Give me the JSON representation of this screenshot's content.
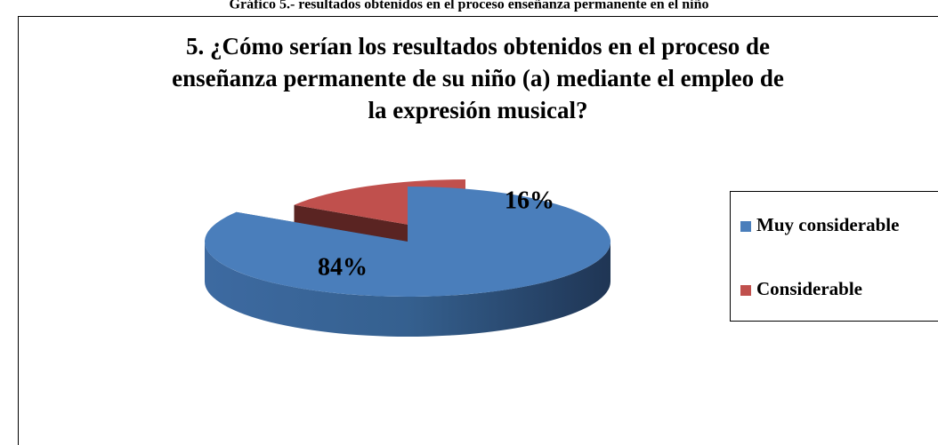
{
  "caption": "Gráfico 5.- resultados obtenidos en el proceso enseñanza permanente en el niño",
  "chart_data": {
    "type": "pie3d",
    "title": [
      "5. ¿Cómo serían los resultados obtenidos en el proceso de",
      "enseñanza permanente de su niño (a) mediante el empleo de",
      "la expresión musical?"
    ],
    "categories": [
      "Muy considerable",
      "Considerable"
    ],
    "values": [
      84,
      16
    ],
    "value_labels": [
      "84%",
      "16%"
    ],
    "colors": [
      "#4a7ebb",
      "#c0504d"
    ],
    "legend": "right"
  }
}
